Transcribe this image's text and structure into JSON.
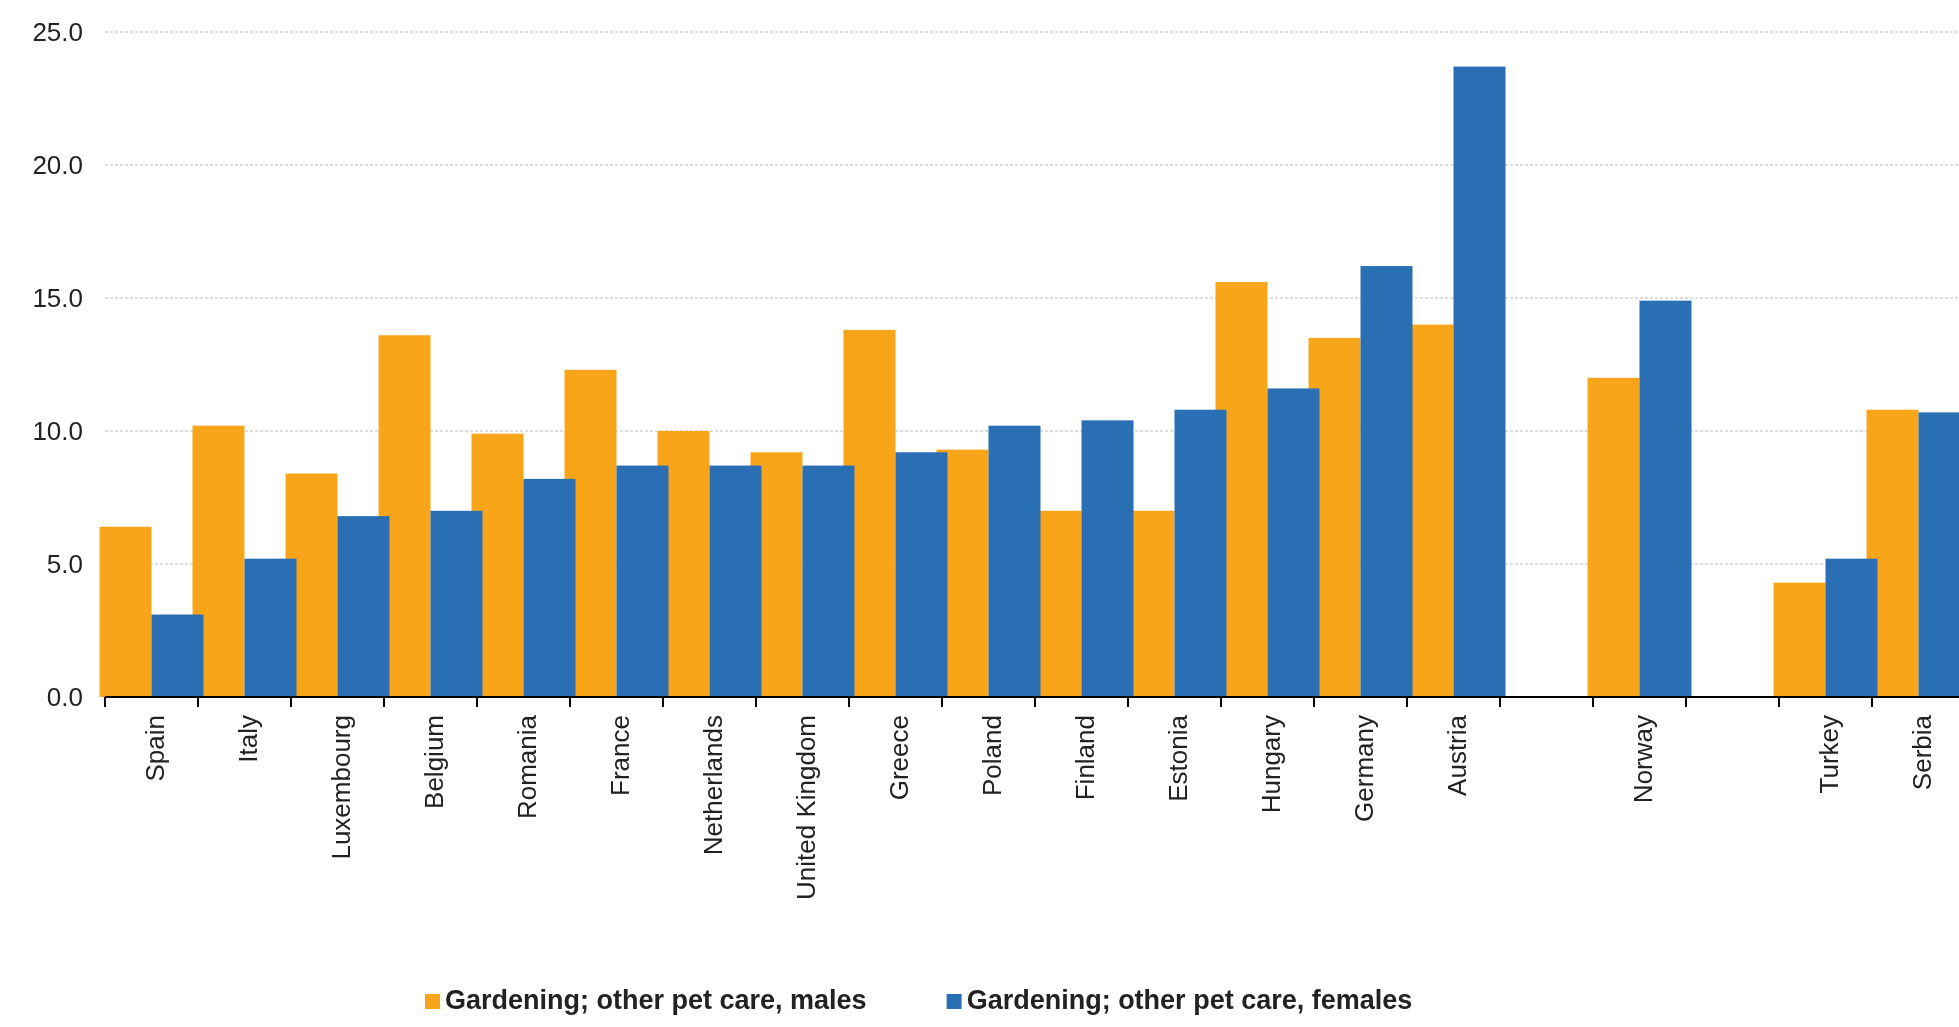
{
  "chart_data": {
    "type": "bar",
    "categories": [
      "Spain",
      "Italy",
      "Luxembourg",
      "Belgium",
      "Romania",
      "France",
      "Netherlands",
      "United Kingdom",
      "Greece",
      "Poland",
      "Finland",
      "Estonia",
      "Hungary",
      "Germany",
      "Austria",
      null,
      "Norway",
      null,
      "Turkey",
      "Serbia"
    ],
    "series": [
      {
        "name": "Gardening; other pet care, males",
        "color": "#f9a51a",
        "values": [
          6.4,
          10.2,
          8.4,
          13.6,
          9.9,
          12.3,
          10.0,
          9.2,
          13.8,
          9.3,
          7.0,
          7.0,
          15.6,
          13.5,
          14.0,
          null,
          12.0,
          null,
          4.3,
          10.8
        ]
      },
      {
        "name": "Gardening; other pet care, females",
        "color": "#2a6eb4",
        "values": [
          3.1,
          5.2,
          6.8,
          7.0,
          8.2,
          8.7,
          8.7,
          8.7,
          9.2,
          10.2,
          10.4,
          10.8,
          11.6,
          16.2,
          23.7,
          null,
          14.9,
          null,
          5.2,
          10.7
        ]
      }
    ],
    "ylim": [
      0,
      25
    ],
    "yticks": [
      {
        "value": 0,
        "label": "0.0"
      },
      {
        "value": 5,
        "label": "5.0"
      },
      {
        "value": 10,
        "label": "10.0"
      },
      {
        "value": 15,
        "label": "15.0"
      },
      {
        "value": 20,
        "label": "20.0"
      },
      {
        "value": 25,
        "label": "25.0"
      }
    ],
    "grid": "y",
    "legend": "bottom"
  }
}
